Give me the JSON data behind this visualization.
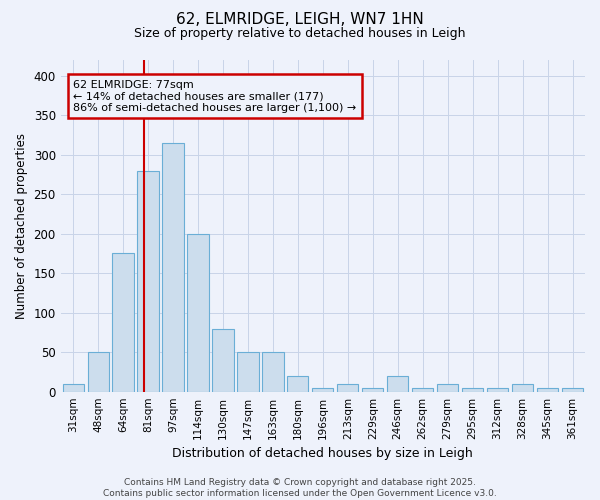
{
  "title1": "62, ELMRIDGE, LEIGH, WN7 1HN",
  "title2": "Size of property relative to detached houses in Leigh",
  "xlabel": "Distribution of detached houses by size in Leigh",
  "ylabel": "Number of detached properties",
  "categories": [
    "31sqm",
    "48sqm",
    "64sqm",
    "81sqm",
    "97sqm",
    "114sqm",
    "130sqm",
    "147sqm",
    "163sqm",
    "180sqm",
    "196sqm",
    "213sqm",
    "229sqm",
    "246sqm",
    "262sqm",
    "279sqm",
    "295sqm",
    "312sqm",
    "328sqm",
    "345sqm",
    "361sqm"
  ],
  "values": [
    10,
    50,
    175,
    280,
    315,
    200,
    80,
    50,
    50,
    20,
    5,
    10,
    5,
    20,
    5,
    10,
    5,
    5,
    10,
    5,
    5
  ],
  "bar_color": "#ccdded",
  "bar_edge_color": "#6aaed6",
  "bar_width": 0.85,
  "vline_x": 2.85,
  "vline_color": "#cc0000",
  "annotation_text": "62 ELMRIDGE: 77sqm\n← 14% of detached houses are smaller (177)\n86% of semi-detached houses are larger (1,100) →",
  "annotation_box_color": "#cc0000",
  "annotation_text_color": "#000000",
  "ylim": [
    0,
    420
  ],
  "yticks": [
    0,
    50,
    100,
    150,
    200,
    250,
    300,
    350,
    400
  ],
  "grid_color": "#c8d4e8",
  "background_color": "#eef2fb",
  "footer": "Contains HM Land Registry data © Crown copyright and database right 2025.\nContains public sector information licensed under the Open Government Licence v3.0."
}
